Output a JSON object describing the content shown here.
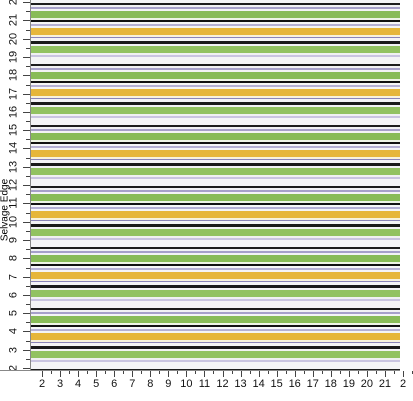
{
  "side_label": "Selvage Edge",
  "left_ruler": [
    "2",
    "3",
    "4",
    "5",
    "6",
    "7",
    "8",
    "9",
    "10",
    "11",
    "12",
    "13",
    "14",
    "15",
    "16",
    "17",
    "18",
    "19",
    "20",
    "21",
    "2"
  ],
  "bottom_ruler": [
    "2",
    "3",
    "4",
    "5",
    "6",
    "7",
    "8",
    "9",
    "10",
    "11",
    "12",
    "13",
    "14",
    "15",
    "16",
    "17",
    "18",
    "19",
    "20",
    "21",
    "2"
  ]
}
